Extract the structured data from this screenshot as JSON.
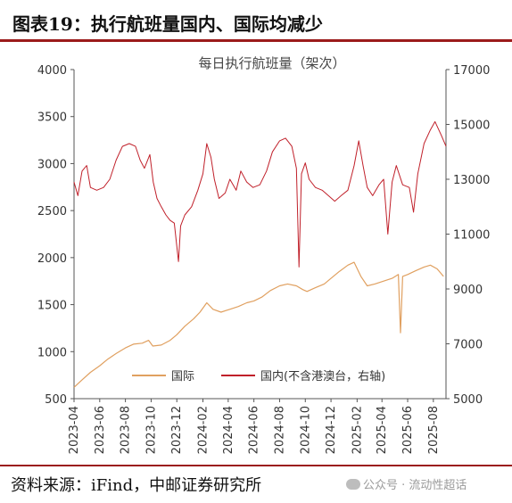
{
  "figure_title": "图表19：执行航班量国内、国际均减少",
  "source_text": "资料来源：iFind，中邮证券研究所",
  "watermark_text": "公众号 · 流动性超话",
  "chart_data": {
    "type": "line",
    "title": "每日执行航班量（架次）",
    "xlabel": "",
    "ylabel": "",
    "y_left": {
      "range": [
        500,
        4000
      ],
      "ticks": [
        "4000",
        "3500",
        "3000",
        "2500",
        "2000",
        "1500",
        "1000",
        "500"
      ]
    },
    "y_right": {
      "range": [
        5000,
        17000
      ],
      "ticks": [
        "17000",
        "15000",
        "13000",
        "11000",
        "9000",
        "7000",
        "5000"
      ]
    },
    "x_range": [
      "2023-04-01",
      "2025-08-31"
    ],
    "x_ticks": [
      "2023-04",
      "2023-06",
      "2023-08",
      "2023-10",
      "2023-12",
      "2024-02",
      "2024-04",
      "2024-06",
      "2024-08",
      "2024-10",
      "2024-12",
      "2025-02",
      "2025-04",
      "2025-06",
      "2025-08"
    ],
    "grid": false,
    "legend": "bottom-center",
    "series": [
      {
        "name": "国际",
        "axis": "left",
        "color": "#e0a060",
        "points": [
          [
            "2023-04-01",
            620
          ],
          [
            "2023-04-20",
            700
          ],
          [
            "2023-05-10",
            780
          ],
          [
            "2023-06-01",
            850
          ],
          [
            "2023-06-20",
            920
          ],
          [
            "2023-07-10",
            980
          ],
          [
            "2023-08-01",
            1040
          ],
          [
            "2023-08-20",
            1080
          ],
          [
            "2023-09-10",
            1090
          ],
          [
            "2023-09-25",
            1120
          ],
          [
            "2023-10-05",
            1060
          ],
          [
            "2023-10-25",
            1070
          ],
          [
            "2023-11-15",
            1120
          ],
          [
            "2023-12-01",
            1180
          ],
          [
            "2023-12-20",
            1270
          ],
          [
            "2024-01-10",
            1350
          ],
          [
            "2024-01-25",
            1420
          ],
          [
            "2024-02-10",
            1520
          ],
          [
            "2024-02-25",
            1450
          ],
          [
            "2024-03-15",
            1420
          ],
          [
            "2024-04-05",
            1450
          ],
          [
            "2024-04-25",
            1480
          ],
          [
            "2024-05-15",
            1520
          ],
          [
            "2024-06-01",
            1540
          ],
          [
            "2024-06-20",
            1580
          ],
          [
            "2024-07-10",
            1650
          ],
          [
            "2024-08-01",
            1700
          ],
          [
            "2024-08-20",
            1720
          ],
          [
            "2024-09-10",
            1700
          ],
          [
            "2024-09-25",
            1660
          ],
          [
            "2024-10-05",
            1640
          ],
          [
            "2024-10-25",
            1680
          ],
          [
            "2024-11-15",
            1720
          ],
          [
            "2024-12-01",
            1780
          ],
          [
            "2024-12-20",
            1850
          ],
          [
            "2025-01-10",
            1920
          ],
          [
            "2025-01-25",
            1950
          ],
          [
            "2025-02-10",
            1800
          ],
          [
            "2025-02-25",
            1700
          ],
          [
            "2025-03-15",
            1720
          ],
          [
            "2025-04-05",
            1750
          ],
          [
            "2025-04-25",
            1780
          ],
          [
            "2025-05-10",
            1820
          ],
          [
            "2025-05-15",
            1200
          ],
          [
            "2025-05-20",
            1800
          ],
          [
            "2025-06-01",
            1820
          ],
          [
            "2025-06-20",
            1860
          ],
          [
            "2025-07-10",
            1900
          ],
          [
            "2025-07-25",
            1920
          ],
          [
            "2025-08-10",
            1880
          ],
          [
            "2025-08-25",
            1800
          ]
        ]
      },
      {
        "name": "国内(不含港澳台，右轴)",
        "axis": "right",
        "color": "#c0202a",
        "points": [
          [
            "2023-04-01",
            12900
          ],
          [
            "2023-04-10",
            12400
          ],
          [
            "2023-04-20",
            13300
          ],
          [
            "2023-05-01",
            13500
          ],
          [
            "2023-05-10",
            12700
          ],
          [
            "2023-05-25",
            12600
          ],
          [
            "2023-06-10",
            12700
          ],
          [
            "2023-06-25",
            13000
          ],
          [
            "2023-07-10",
            13700
          ],
          [
            "2023-07-25",
            14200
          ],
          [
            "2023-08-10",
            14300
          ],
          [
            "2023-08-25",
            14200
          ],
          [
            "2023-09-05",
            13700
          ],
          [
            "2023-09-15",
            13400
          ],
          [
            "2023-09-28",
            13900
          ],
          [
            "2023-10-06",
            12900
          ],
          [
            "2023-10-15",
            12300
          ],
          [
            "2023-10-25",
            12000
          ],
          [
            "2023-11-05",
            11700
          ],
          [
            "2023-11-15",
            11500
          ],
          [
            "2023-11-25",
            11400
          ],
          [
            "2023-12-05",
            10000
          ],
          [
            "2023-12-10",
            11300
          ],
          [
            "2023-12-20",
            11700
          ],
          [
            "2024-01-05",
            12000
          ],
          [
            "2024-01-20",
            12600
          ],
          [
            "2024-02-01",
            13200
          ],
          [
            "2024-02-10",
            14300
          ],
          [
            "2024-02-20",
            13800
          ],
          [
            "2024-02-28",
            13000
          ],
          [
            "2024-03-10",
            12300
          ],
          [
            "2024-03-25",
            12500
          ],
          [
            "2024-04-05",
            13000
          ],
          [
            "2024-04-20",
            12600
          ],
          [
            "2024-05-01",
            13300
          ],
          [
            "2024-05-15",
            12900
          ],
          [
            "2024-05-30",
            12700
          ],
          [
            "2024-06-15",
            12800
          ],
          [
            "2024-07-01",
            13300
          ],
          [
            "2024-07-15",
            14000
          ],
          [
            "2024-08-01",
            14400
          ],
          [
            "2024-08-15",
            14500
          ],
          [
            "2024-08-30",
            14200
          ],
          [
            "2024-09-10",
            13400
          ],
          [
            "2024-09-16",
            9800
          ],
          [
            "2024-09-22",
            13200
          ],
          [
            "2024-10-01",
            13600
          ],
          [
            "2024-10-10",
            13000
          ],
          [
            "2024-10-25",
            12700
          ],
          [
            "2024-11-10",
            12600
          ],
          [
            "2024-11-25",
            12400
          ],
          [
            "2024-12-10",
            12200
          ],
          [
            "2024-12-25",
            12400
          ],
          [
            "2025-01-10",
            12600
          ],
          [
            "2025-01-25",
            13500
          ],
          [
            "2025-02-05",
            14400
          ],
          [
            "2025-02-15",
            13500
          ],
          [
            "2025-02-25",
            12700
          ],
          [
            "2025-03-10",
            12400
          ],
          [
            "2025-03-25",
            12800
          ],
          [
            "2025-04-05",
            13000
          ],
          [
            "2025-04-15",
            11000
          ],
          [
            "2025-04-25",
            12900
          ],
          [
            "2025-05-05",
            13500
          ],
          [
            "2025-05-20",
            12800
          ],
          [
            "2025-06-05",
            12700
          ],
          [
            "2025-06-15",
            11800
          ],
          [
            "2025-06-25",
            13200
          ],
          [
            "2025-07-10",
            14300
          ],
          [
            "2025-07-25",
            14800
          ],
          [
            "2025-08-05",
            15100
          ],
          [
            "2025-08-20",
            14600
          ],
          [
            "2025-08-31",
            14200
          ]
        ]
      }
    ]
  }
}
